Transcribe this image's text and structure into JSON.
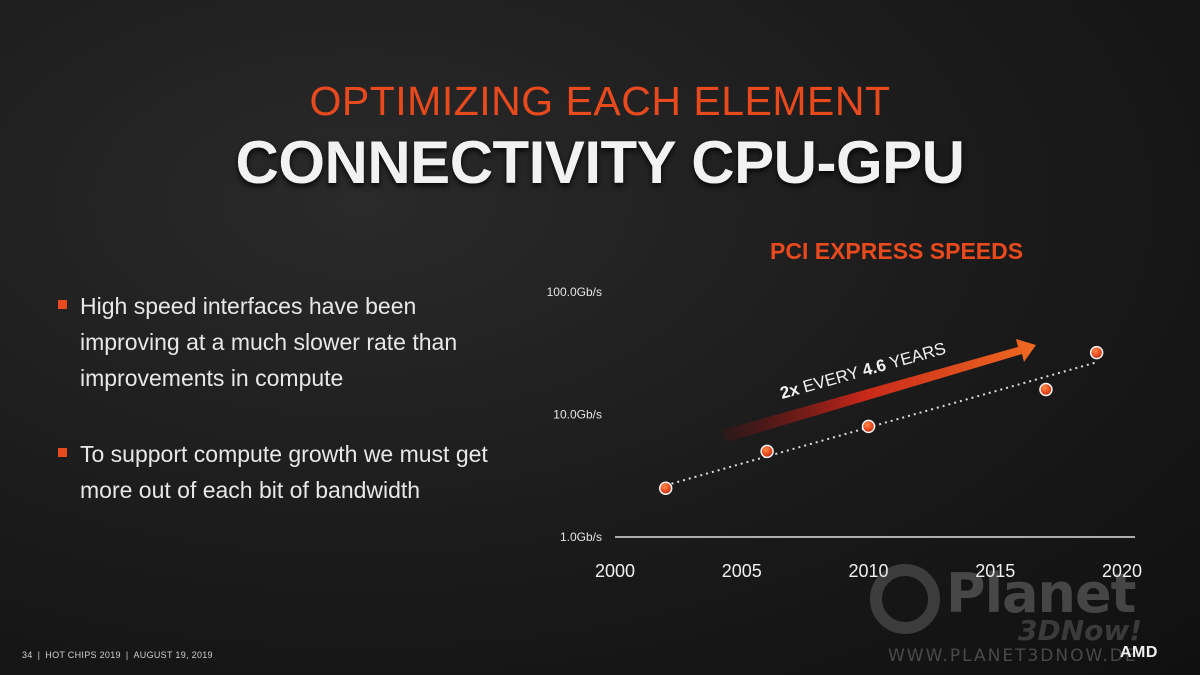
{
  "slide": {
    "supertitle": "OPTIMIZING EACH ELEMENT",
    "title": "CONNECTIVITY CPU-GPU"
  },
  "bullets": [
    "High speed interfaces have been improving at a much slower rate than improvements in compute",
    "To support compute growth we must get more out of each bit of bandwidth"
  ],
  "chart_data": {
    "type": "scatter",
    "title": "PCI EXPRESS SPEEDS",
    "xlabel": "",
    "ylabel": "",
    "xlim": [
      2000,
      2020
    ],
    "ylim": [
      1,
      100
    ],
    "y_scale": "log",
    "x_ticks": [
      "2000",
      "2005",
      "2010",
      "2015",
      "2020"
    ],
    "y_ticks": [
      "100.0Gb/s",
      "10.0Gb/s",
      "1.0Gb/s"
    ],
    "grid": false,
    "trendline": true,
    "series": [
      {
        "x": [
          2002,
          2006,
          2010,
          2017,
          2019
        ],
        "y": [
          2.5,
          5,
          8,
          16,
          32
        ]
      }
    ],
    "annotation": {
      "prefix": "2x",
      "middle": " EVERY ",
      "bold": "4.6",
      "suffix": " YEARS"
    }
  },
  "footer": {
    "page": "34",
    "event": "HOT CHIPS 2019",
    "date": "AUGUST 19, 2019"
  },
  "logo": "AMD",
  "watermark": {
    "name": "Planet",
    "sub": "3DNow!",
    "url": "WWW.PLANET3DNOW.DE"
  },
  "colors": {
    "accent": "#e8491d",
    "text": "#e8e8e8",
    "background": "#1a1a1a"
  }
}
